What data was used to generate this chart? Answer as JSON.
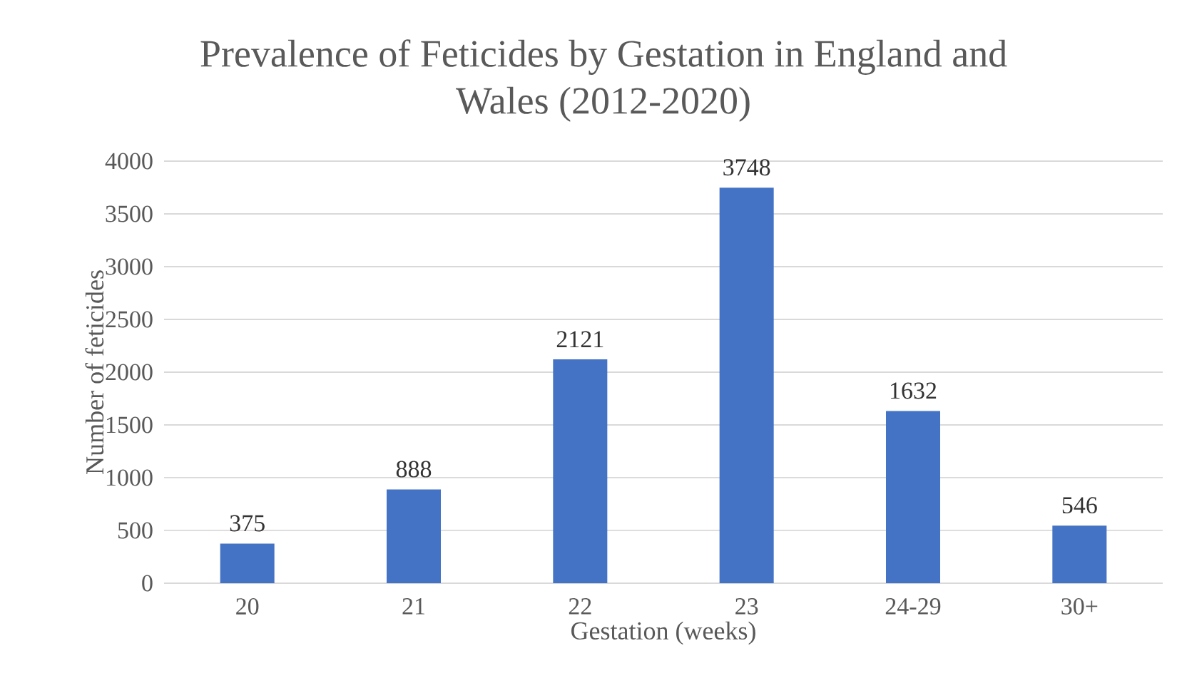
{
  "chart_data": {
    "type": "bar",
    "title": "Prevalence of Feticides by Gestation in England and Wales (2012-2020)",
    "xlabel": "Gestation (weeks)",
    "ylabel": "Number of feticides",
    "categories": [
      "20",
      "21",
      "22",
      "23",
      "24-29",
      "30+"
    ],
    "values": [
      375,
      888,
      2121,
      3748,
      1632,
      546
    ],
    "color": "#4472c4",
    "ylim": [
      0,
      4000
    ],
    "yticks": [
      0,
      500,
      1000,
      1500,
      2000,
      2500,
      3000,
      3500,
      4000
    ],
    "grid": "y",
    "data_labels": true
  }
}
